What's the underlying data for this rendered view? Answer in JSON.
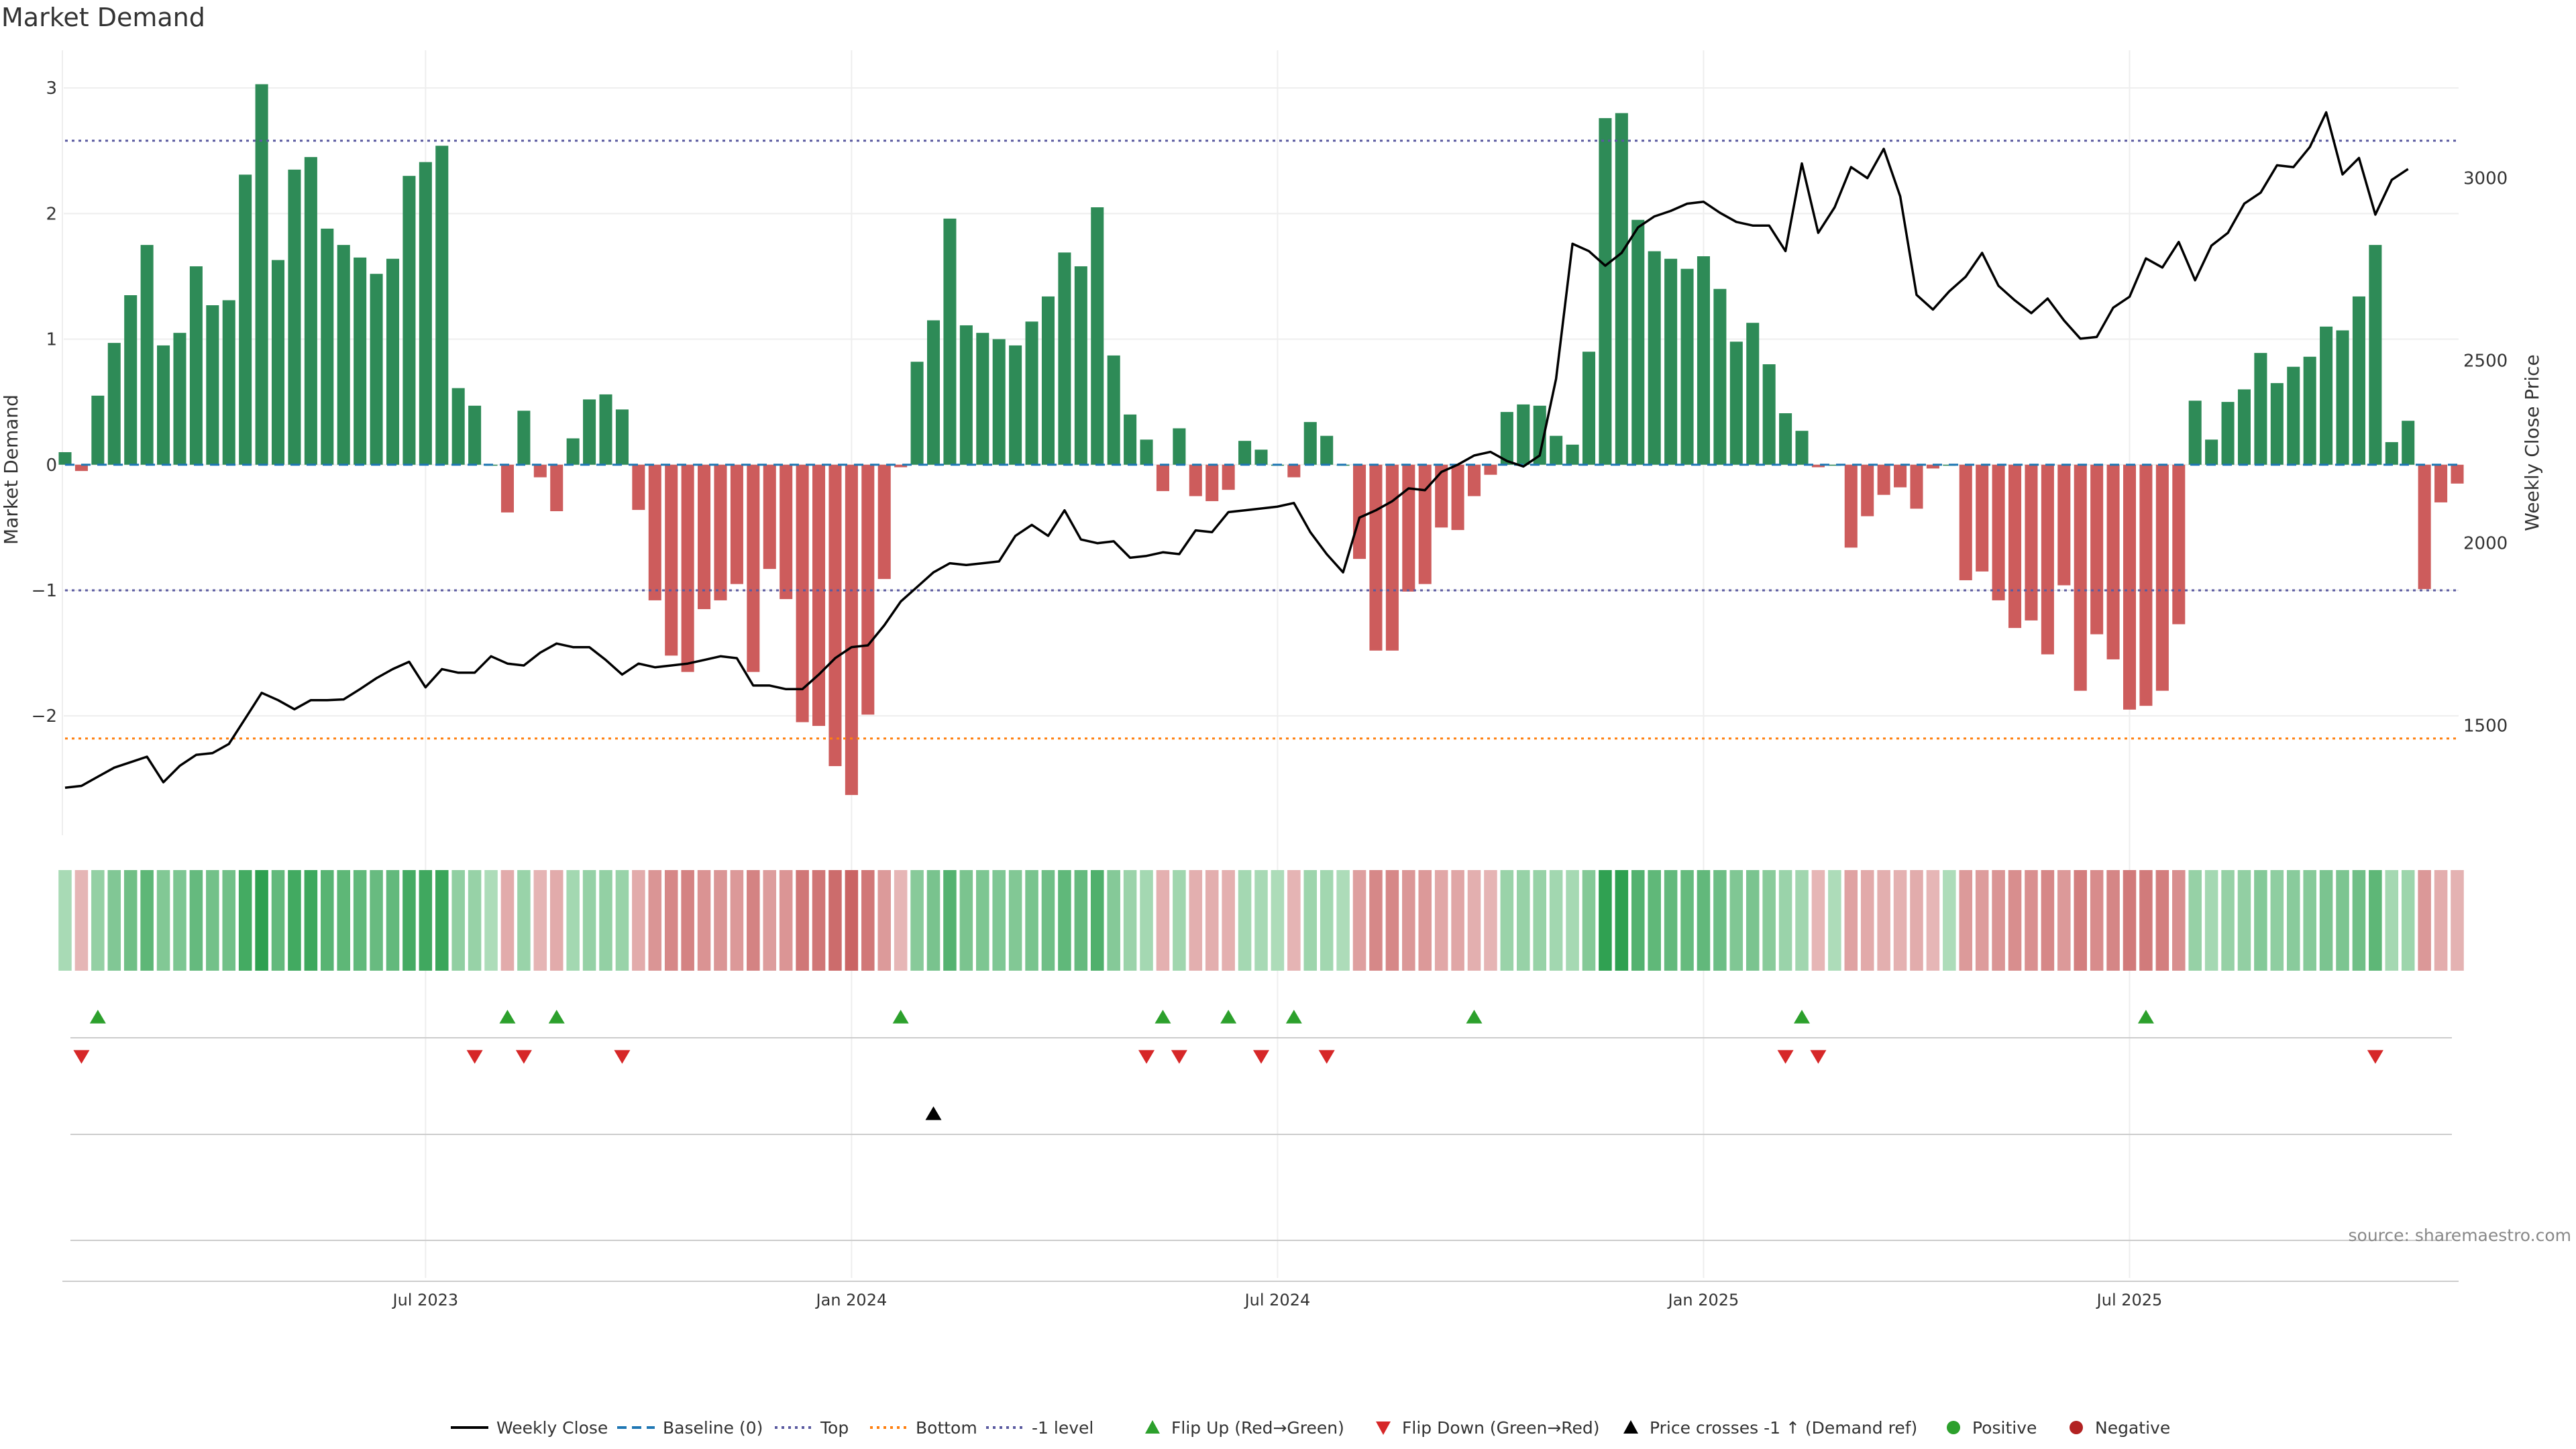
{
  "chart_data": {
    "type": "bar",
    "title": "Market Demand",
    "ylabel_left": "Market Demand",
    "ylabel_right": "Weekly Close Price",
    "ylim_left": [
      -2.95,
      3.3
    ],
    "ylim_right": [
      1200,
      3350
    ],
    "yticks_left": [
      3,
      2,
      1,
      0,
      -1,
      -2
    ],
    "yticks_left_labels": [
      "3",
      "2",
      "1",
      "0",
      "−1",
      "−2"
    ],
    "yticks_right": [
      3000,
      2500,
      2000,
      1500
    ],
    "yticks_right_labels": [
      "3000",
      "2500",
      "2000",
      "1500"
    ],
    "x_ticks": [
      {
        "label": "Jul 2023",
        "week": 22
      },
      {
        "label": "Jan 2024",
        "week": 48
      },
      {
        "label": "Jul 2024",
        "week": 74
      },
      {
        "label": "Jan 2025",
        "week": 100
      },
      {
        "label": "Jul 2025",
        "week": 126
      }
    ],
    "reference_lines": {
      "top": 2.58,
      "bottom": -2.18,
      "minus_one": -1,
      "baseline": 0
    },
    "demand": [
      0.1,
      -0.05,
      0.55,
      0.97,
      1.35,
      1.75,
      0.95,
      1.05,
      1.58,
      1.27,
      1.31,
      2.31,
      3.03,
      1.63,
      2.35,
      2.45,
      1.88,
      1.75,
      1.65,
      1.52,
      1.64,
      2.3,
      2.41,
      2.54,
      0.61,
      0.47,
      0.0,
      -0.38,
      0.43,
      -0.1,
      -0.37,
      0.21,
      0.52,
      0.56,
      0.44,
      -0.36,
      -1.08,
      -1.52,
      -1.65,
      -1.15,
      -1.08,
      -0.95,
      -1.65,
      -0.83,
      -1.07,
      -2.05,
      -2.08,
      -2.4,
      -2.63,
      -1.99,
      -0.91,
      -0.02,
      0.82,
      1.15,
      1.96,
      1.11,
      1.05,
      1.0,
      0.95,
      1.14,
      1.34,
      1.69,
      1.58,
      2.05,
      0.87,
      0.4,
      0.2,
      -0.21,
      0.29,
      -0.25,
      -0.29,
      -0.2,
      0.19,
      0.12,
      0.0,
      -0.1,
      0.34,
      0.23,
      0.0,
      -0.75,
      -1.48,
      -1.48,
      -1.01,
      -0.95,
      -0.5,
      -0.52,
      -0.25,
      -0.08,
      0.42,
      0.48,
      0.47,
      0.23,
      0.16,
      0.9,
      2.76,
      2.8,
      1.95,
      1.7,
      1.64,
      1.56,
      1.66,
      1.4,
      0.98,
      1.13,
      0.8,
      0.41,
      0.27,
      -0.02,
      0.0,
      -0.66,
      -0.41,
      -0.24,
      -0.18,
      -0.35,
      -0.03,
      0.0,
      -0.92,
      -0.85,
      -1.08,
      -1.3,
      -1.24,
      -1.51,
      -0.96,
      -1.8,
      -1.35,
      -1.55,
      -1.95,
      -1.92,
      -1.8,
      -1.27,
      0.51,
      0.2,
      0.5,
      0.6,
      0.89,
      0.65,
      0.78,
      0.86,
      1.1,
      1.07,
      1.34,
      1.75,
      0.18,
      0.35,
      -0.99,
      -0.3,
      -0.15
    ],
    "weekly_close": [
      1330,
      1335,
      1360,
      1385,
      1400,
      1415,
      1345,
      1390,
      1420,
      1425,
      1450,
      1520,
      1590,
      1570,
      1545,
      1570,
      1570,
      1572,
      1600,
      1630,
      1655,
      1675,
      1605,
      1655,
      1645,
      1645,
      1690,
      1670,
      1665,
      1700,
      1725,
      1715,
      1715,
      1680,
      1640,
      1670,
      1660,
      1665,
      1670,
      1680,
      1690,
      1685,
      1610,
      1610,
      1600,
      1600,
      1640,
      1685,
      1715,
      1720,
      1775,
      1840,
      1880,
      1920,
      1945,
      1940,
      1945,
      1950,
      2020,
      2050,
      2020,
      2090,
      2010,
      2000,
      2005,
      1960,
      1965,
      1975,
      1970,
      2035,
      2030,
      2085,
      2090,
      2095,
      2100,
      2110,
      2030,
      1970,
      1920,
      2070,
      2090,
      2115,
      2150,
      2145,
      2195,
      2215,
      2240,
      2250,
      2225,
      2210,
      2240,
      2450,
      2820,
      2800,
      2760,
      2795,
      2865,
      2895,
      2910,
      2930,
      2935,
      2905,
      2880,
      2870,
      2870,
      2800,
      3040,
      2850,
      2920,
      3030,
      3000,
      3080,
      2950,
      2680,
      2640,
      2690,
      2730,
      2795,
      2705,
      2665,
      2630,
      2670,
      2610,
      2560,
      2565,
      2645,
      2675,
      2780,
      2755,
      2825,
      2720,
      2815,
      2850,
      2930,
      2960,
      3035,
      3030,
      3085,
      3180,
      3010,
      3055,
      2900,
      2995,
      3025
    ],
    "heat_strip": {
      "label": "",
      "encoding": "demand magnitude, green positive / red negative"
    },
    "flip_up_weeks": [
      2,
      27,
      30,
      51,
      67,
      71,
      75,
      86,
      106,
      127
    ],
    "flip_down_weeks": [
      1,
      25,
      28,
      34,
      66,
      68,
      73,
      77,
      105,
      107,
      141
    ],
    "price_cross_weeks": [
      53
    ],
    "legend": [
      "Weekly Close",
      "Baseline (0)",
      "Top",
      "Bottom",
      "-1 level",
      "Flip Up (Red→Green)",
      "Flip Down (Green→Red)",
      "Price crosses -1 ↑ (Demand ref)",
      "Positive",
      "Negative"
    ],
    "source": "source: sharemaestro.com",
    "colors": {
      "positive": "#2e8b57",
      "negative": "#cd5c5c",
      "flip_up": "#2ca02c",
      "flip_down": "#d62728",
      "top_line": "#5a5aa0",
      "bottom_line": "#ff7f0e",
      "baseline": "#1f77b4",
      "price": "#000000",
      "pos_dot": "#2ca02c",
      "neg_dot": "#b22222"
    }
  }
}
